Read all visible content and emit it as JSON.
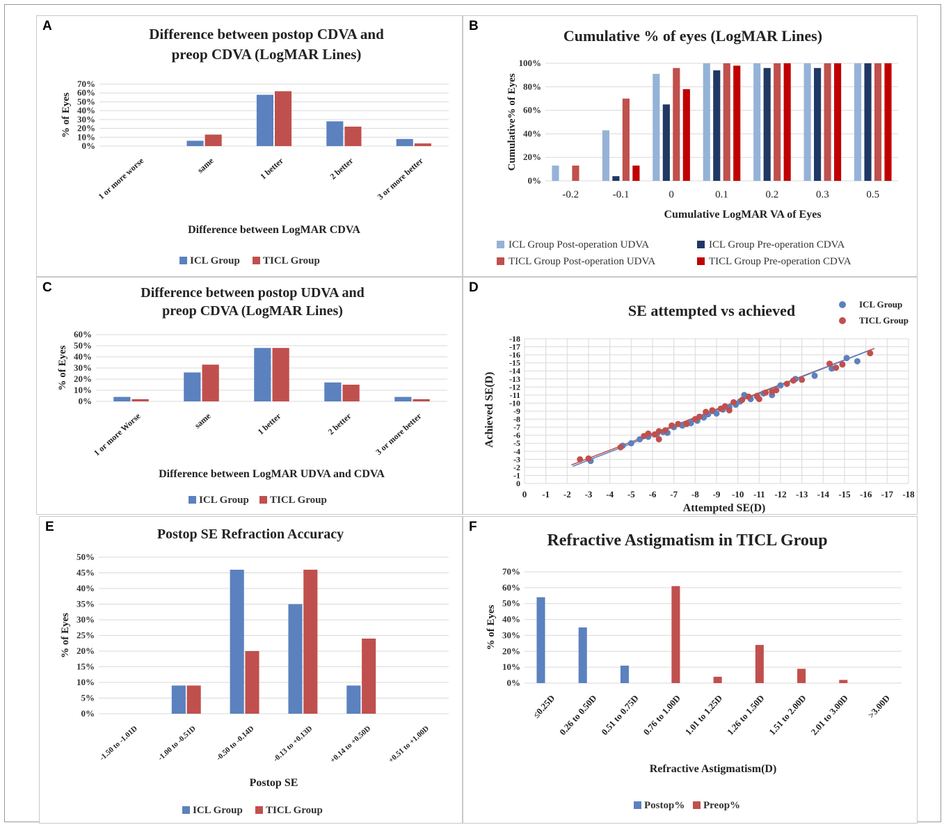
{
  "panels": [
    {
      "id": "A",
      "chart_data": {
        "type": "bar",
        "title": [
          "Difference between  postop CDVA and",
          "preop CDVA (LogMAR Lines)"
        ],
        "xlabel": "Difference between LogMAR CDVA",
        "ylabel": "% of Eyes",
        "categories": [
          "1 or more worse",
          "same",
          "1 better",
          "2 better",
          "3 or more better"
        ],
        "series": [
          {
            "name": "ICL Group",
            "values": [
              0,
              6,
              58,
              28,
              8
            ]
          },
          {
            "name": "TICL Group",
            "values": [
              0,
              13,
              62,
              22,
              3
            ]
          }
        ],
        "yticks": [
          "0%",
          "10%",
          "20%",
          "30%",
          "40%",
          "50%",
          "60%",
          "70%"
        ],
        "ylim": [
          0,
          70
        ],
        "legend": "bottom",
        "grid": true
      }
    },
    {
      "id": "B",
      "chart_data": {
        "type": "bar",
        "title": [
          "Cumulative % of eyes (LogMAR Lines)"
        ],
        "xlabel": "Cumulative LogMAR VA of Eyes",
        "ylabel": "Cumulative% of Eyes",
        "categories": [
          "-0.2",
          "-0.1",
          "0",
          "0.1",
          "0.2",
          "0.3",
          "0.5"
        ],
        "series": [
          {
            "name": "ICL Group Post-operation UDVA",
            "values": [
              13,
              43,
              91,
              100,
              100,
              100,
              100
            ]
          },
          {
            "name": "ICL Group Pre-operation CDVA",
            "values": [
              0,
              4,
              65,
              94,
              96,
              96,
              100
            ]
          },
          {
            "name": "TICL Group Post-operation UDVA",
            "values": [
              13,
              70,
              96,
              100,
              100,
              100,
              100
            ]
          },
          {
            "name": "TICL Group Pre-operation CDVA",
            "values": [
              0,
              13,
              78,
              98,
              100,
              100,
              100
            ]
          }
        ],
        "legend_order": [
          0,
          1,
          2,
          3
        ],
        "yticks": [
          "0%",
          "20%",
          "40%",
          "60%",
          "80%",
          "100%"
        ],
        "ylim": [
          0,
          100
        ],
        "legend": "bottom",
        "grid": true
      }
    },
    {
      "id": "C",
      "chart_data": {
        "type": "bar",
        "title": [
          "Difference between  postop UDVA and",
          "preop CDVA (LogMAR Lines)"
        ],
        "xlabel": "Difference between LogMAR UDVA and CDVA",
        "ylabel": "% of Eyes",
        "categories": [
          "1 or more Worse",
          "same",
          "1 better",
          "2 better",
          "3 or more better"
        ],
        "series": [
          {
            "name": "ICL Group",
            "values": [
              4,
              26,
              48,
              17,
              4
            ]
          },
          {
            "name": "TICL Group",
            "values": [
              2,
              33,
              48,
              15,
              2
            ]
          }
        ],
        "yticks": [
          "0%",
          "10%",
          "20%",
          "30%",
          "40%",
          "50%",
          "60%"
        ],
        "ylim": [
          0,
          60
        ],
        "legend": "bottom",
        "grid": true
      }
    },
    {
      "id": "D",
      "chart_data": {
        "type": "scatter",
        "title": [
          "SE attempted vs achieved"
        ],
        "xlabel": "Attempted SE(D)",
        "ylabel": "Achieved SE(D)",
        "xticks": [
          "0",
          "-1",
          "-2",
          "-3",
          "-4",
          "-5",
          "-6",
          "-7",
          "-8",
          "-9",
          "-10",
          "-11",
          "-12",
          "-13",
          "-14",
          "-15",
          "-16",
          "-17",
          "-18"
        ],
        "yticks": [
          "0",
          "-1",
          "-2",
          "-3",
          "-4",
          "-5",
          "-6",
          "-7",
          "-8",
          "-9",
          "-10",
          "-11",
          "-12",
          "-13",
          "-14",
          "-15",
          "-16",
          "-17",
          "-18"
        ],
        "xlim": [
          0,
          -18
        ],
        "ylim": [
          0,
          -18
        ],
        "legend": "top-right",
        "grid": true,
        "series": [
          {
            "name": "ICL Group",
            "points": [
              [
                -3.1,
                -2.8
              ],
              [
                -4.6,
                -4.7
              ],
              [
                -5.0,
                -5.0
              ],
              [
                -5.4,
                -5.5
              ],
              [
                -5.8,
                -5.8
              ],
              [
                -6.2,
                -6.1
              ],
              [
                -6.5,
                -6.4
              ],
              [
                -6.7,
                -6.3
              ],
              [
                -7.0,
                -7.0
              ],
              [
                -7.4,
                -7.2
              ],
              [
                -7.8,
                -7.5
              ],
              [
                -8.1,
                -7.8
              ],
              [
                -8.4,
                -8.2
              ],
              [
                -8.6,
                -8.6
              ],
              [
                -8.8,
                -9.0
              ],
              [
                -9.0,
                -8.7
              ],
              [
                -9.3,
                -9.2
              ],
              [
                -9.6,
                -9.5
              ],
              [
                -9.9,
                -9.8
              ],
              [
                -10.1,
                -10.2
              ],
              [
                -10.3,
                -11.0
              ],
              [
                -10.6,
                -10.5
              ],
              [
                -10.9,
                -10.8
              ],
              [
                -11.2,
                -11.2
              ],
              [
                -11.6,
                -11.0
              ],
              [
                -12.0,
                -12.2
              ],
              [
                -12.7,
                -13.0
              ],
              [
                -13.6,
                -13.4
              ],
              [
                -14.4,
                -14.3
              ],
              [
                -15.1,
                -15.6
              ],
              [
                -15.6,
                -15.2
              ]
            ]
          },
          {
            "name": "TICL Group",
            "points": [
              [
                -2.6,
                -3.0
              ],
              [
                -3.0,
                -3.1
              ],
              [
                -4.5,
                -4.5
              ],
              [
                -5.6,
                -5.9
              ],
              [
                -5.8,
                -6.2
              ],
              [
                -6.1,
                -6.1
              ],
              [
                -6.3,
                -6.5
              ],
              [
                -6.6,
                -6.6
              ],
              [
                -6.3,
                -5.5
              ],
              [
                -6.9,
                -7.2
              ],
              [
                -7.2,
                -7.4
              ],
              [
                -7.6,
                -7.4
              ],
              [
                -8.0,
                -8.0
              ],
              [
                -8.2,
                -8.3
              ],
              [
                -8.5,
                -8.9
              ],
              [
                -8.8,
                -9.1
              ],
              [
                -9.2,
                -9.3
              ],
              [
                -9.4,
                -9.6
              ],
              [
                -9.8,
                -10.1
              ],
              [
                -9.6,
                -9.1
              ],
              [
                -10.2,
                -10.4
              ],
              [
                -10.5,
                -10.8
              ],
              [
                -10.9,
                -10.9
              ],
              [
                -11.0,
                -10.5
              ],
              [
                -11.3,
                -11.3
              ],
              [
                -11.6,
                -11.4
              ],
              [
                -11.8,
                -11.6
              ],
              [
                -12.3,
                -12.4
              ],
              [
                -12.6,
                -12.8
              ],
              [
                -13.0,
                -12.9
              ],
              [
                -14.3,
                -14.9
              ],
              [
                -14.6,
                -14.4
              ],
              [
                -14.9,
                -14.8
              ],
              [
                -16.2,
                -16.2
              ]
            ]
          }
        ],
        "trendline": {
          "from": [
            -2.2,
            -2.3
          ],
          "to": [
            -16.4,
            -16.8
          ]
        }
      }
    },
    {
      "id": "E",
      "chart_data": {
        "type": "bar",
        "title": [
          "Postop SE Refraction Accuracy"
        ],
        "xlabel": "Postop SE",
        "ylabel": "% of Eyes",
        "categories": [
          "-1.50 to -1.01D",
          "-1.00 to -0.51D",
          "-0.50 to -0.14D",
          "-0.13 to +0.13D",
          "+0.14 to +0.50D",
          "+0.51 to +1.00D"
        ],
        "series": [
          {
            "name": "ICL Group",
            "values": [
              0,
              9,
              46,
              35,
              9,
              0
            ]
          },
          {
            "name": "TICL Group",
            "values": [
              0,
              9,
              20,
              46,
              24,
              0
            ]
          }
        ],
        "yticks": [
          "0%",
          "5%",
          "10%",
          "15%",
          "20%",
          "25%",
          "30%",
          "35%",
          "40%",
          "45%",
          "50%"
        ],
        "ylim": [
          0,
          50
        ],
        "legend": "bottom",
        "grid": true
      }
    },
    {
      "id": "F",
      "chart_data": {
        "type": "bar",
        "title": [
          "Refractive Astigmatism in TICL Group"
        ],
        "xlabel": "Refractive  Astigmatism(D)",
        "ylabel": "% of Eyes",
        "categories": [
          "≤0.25D",
          "0.26 to 0.50D",
          "0.51 to 0.75D",
          "0.76 to 1.00D",
          "1.01 to 1.25D",
          "1.26 to 1.50D",
          "1.51 to 2.00D",
          "2.01 to 3.00D",
          ">3.00D"
        ],
        "series": [
          {
            "name": "Postop%",
            "values": [
              54,
              35,
              11,
              0,
              0,
              0,
              0,
              0,
              0
            ]
          },
          {
            "name": "Preop%",
            "values": [
              0,
              0,
              0,
              61,
              4,
              24,
              9,
              2,
              0
            ]
          }
        ],
        "yticks": [
          "0%",
          "10%",
          "20%",
          "30%",
          "40%",
          "50%",
          "60%",
          "70%"
        ],
        "ylim": [
          0,
          70
        ],
        "legend": "bottom",
        "grid": true
      }
    }
  ],
  "colors": {
    "blue": "#5b81bf",
    "red": "#c0504d",
    "lightblue": "#95b3d7",
    "navy": "#1f3864",
    "rose": "#c0504d",
    "darkred": "#c00000",
    "grid": "#d9d9d9",
    "trend": "#c0504d"
  }
}
